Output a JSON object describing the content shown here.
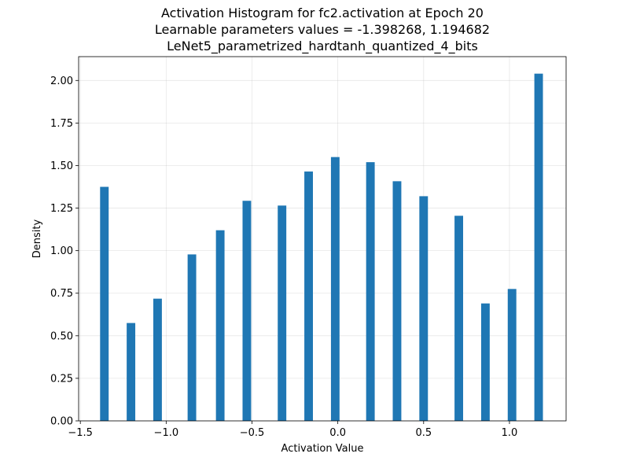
{
  "chart_data": {
    "type": "bar",
    "title_lines": [
      "Activation Histogram for fc2.activation at Epoch 20",
      "Learnable parameters values = -1.398268, 1.194682",
      "LeNet5_parametrized_hardtanh_quantized_4_bits"
    ],
    "xlabel": "Activation Value",
    "ylabel": "Density",
    "xlim": [
      -1.51,
      1.33
    ],
    "ylim": [
      0,
      2.14
    ],
    "xticks": [
      -1.5,
      -1.0,
      -0.5,
      0.0,
      0.5,
      1.0
    ],
    "xtick_labels": [
      "−1.5",
      "−1.0",
      "−0.5",
      "0.0",
      "0.5",
      "1.0"
    ],
    "yticks": [
      0,
      0.25,
      0.5,
      0.75,
      1.0,
      1.25,
      1.5,
      1.75,
      2.0
    ],
    "ytick_labels": [
      "0.00",
      "0.25",
      "0.50",
      "0.75",
      "1.00",
      "1.25",
      "1.50",
      "1.75",
      "2.00"
    ],
    "grid": true,
    "bar_width": 0.05,
    "bar_color": "#1f77b4",
    "bars": [
      {
        "x": -1.36,
        "value": 1.375
      },
      {
        "x": -1.205,
        "value": 0.575
      },
      {
        "x": -1.05,
        "value": 0.718
      },
      {
        "x": -0.85,
        "value": 0.978
      },
      {
        "x": -0.685,
        "value": 1.12
      },
      {
        "x": -0.53,
        "value": 1.293
      },
      {
        "x": -0.325,
        "value": 1.265
      },
      {
        "x": -0.17,
        "value": 1.465
      },
      {
        "x": -0.015,
        "value": 1.55
      },
      {
        "x": 0.19,
        "value": 1.52
      },
      {
        "x": 0.345,
        "value": 1.408
      },
      {
        "x": 0.5,
        "value": 1.32
      },
      {
        "x": 0.705,
        "value": 1.205
      },
      {
        "x": 0.86,
        "value": 0.69
      },
      {
        "x": 1.015,
        "value": 0.775
      },
      {
        "x": 1.17,
        "value": 2.04
      }
    ]
  }
}
